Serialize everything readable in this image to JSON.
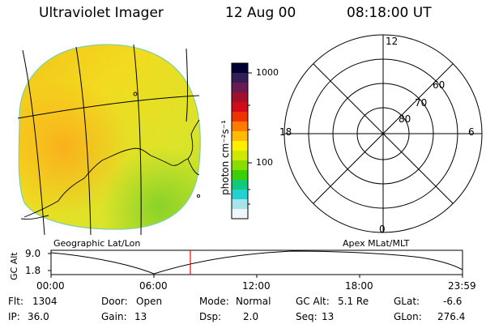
{
  "header": {
    "instrument": "Ultraviolet Imager",
    "date": "12 Aug 00",
    "time": "08:18:00 UT"
  },
  "colorbar": {
    "unit_label": "photon cm⁻²s⁻¹",
    "tick_labels": [
      "1000",
      "100"
    ],
    "tick_values": [
      1000,
      100
    ],
    "colors": [
      "#000033",
      "#331f55",
      "#6a1a55",
      "#a0102a",
      "#d20a1a",
      "#ee3300",
      "#ff7a00",
      "#ffbb00",
      "#ffee00",
      "#cfe800",
      "#89dd00",
      "#3bd000",
      "#11c97a",
      "#22d2d2",
      "#a6e4e9",
      "#f0f6f8"
    ]
  },
  "polar_grid": {
    "mlt_labels": [
      "12",
      "18",
      "6",
      "0"
    ],
    "mlat_labels": [
      "60",
      "70",
      "80"
    ]
  },
  "timeline": {
    "left_title": "Geographic Lat/Lon",
    "right_title": "Apex MLat/MLT",
    "ylabel": "GC Alt",
    "y_ticks": [
      "9.0",
      "1.8"
    ],
    "x_ticks": [
      "00:00",
      "06:00",
      "12:00",
      "18:00",
      "23:59"
    ],
    "current_time_marker": "08:18:00"
  },
  "status": {
    "row1": [
      {
        "label": "Flt:",
        "value": "1304"
      },
      {
        "label": "Door:",
        "value": "Open"
      },
      {
        "label": "Mode:",
        "value": "Normal"
      },
      {
        "label": "GC Alt:",
        "value": "5.1 Re"
      },
      {
        "label": "GLat:",
        "value": "-6.6"
      }
    ],
    "row2": [
      {
        "label": "IP:",
        "value": "36.0"
      },
      {
        "label": "Gain:",
        "value": "13"
      },
      {
        "label": "Dsp:",
        "value": "2.0"
      },
      {
        "label": "Seq:",
        "value": "13"
      },
      {
        "label": "GLon:",
        "value": "276.4"
      }
    ]
  }
}
